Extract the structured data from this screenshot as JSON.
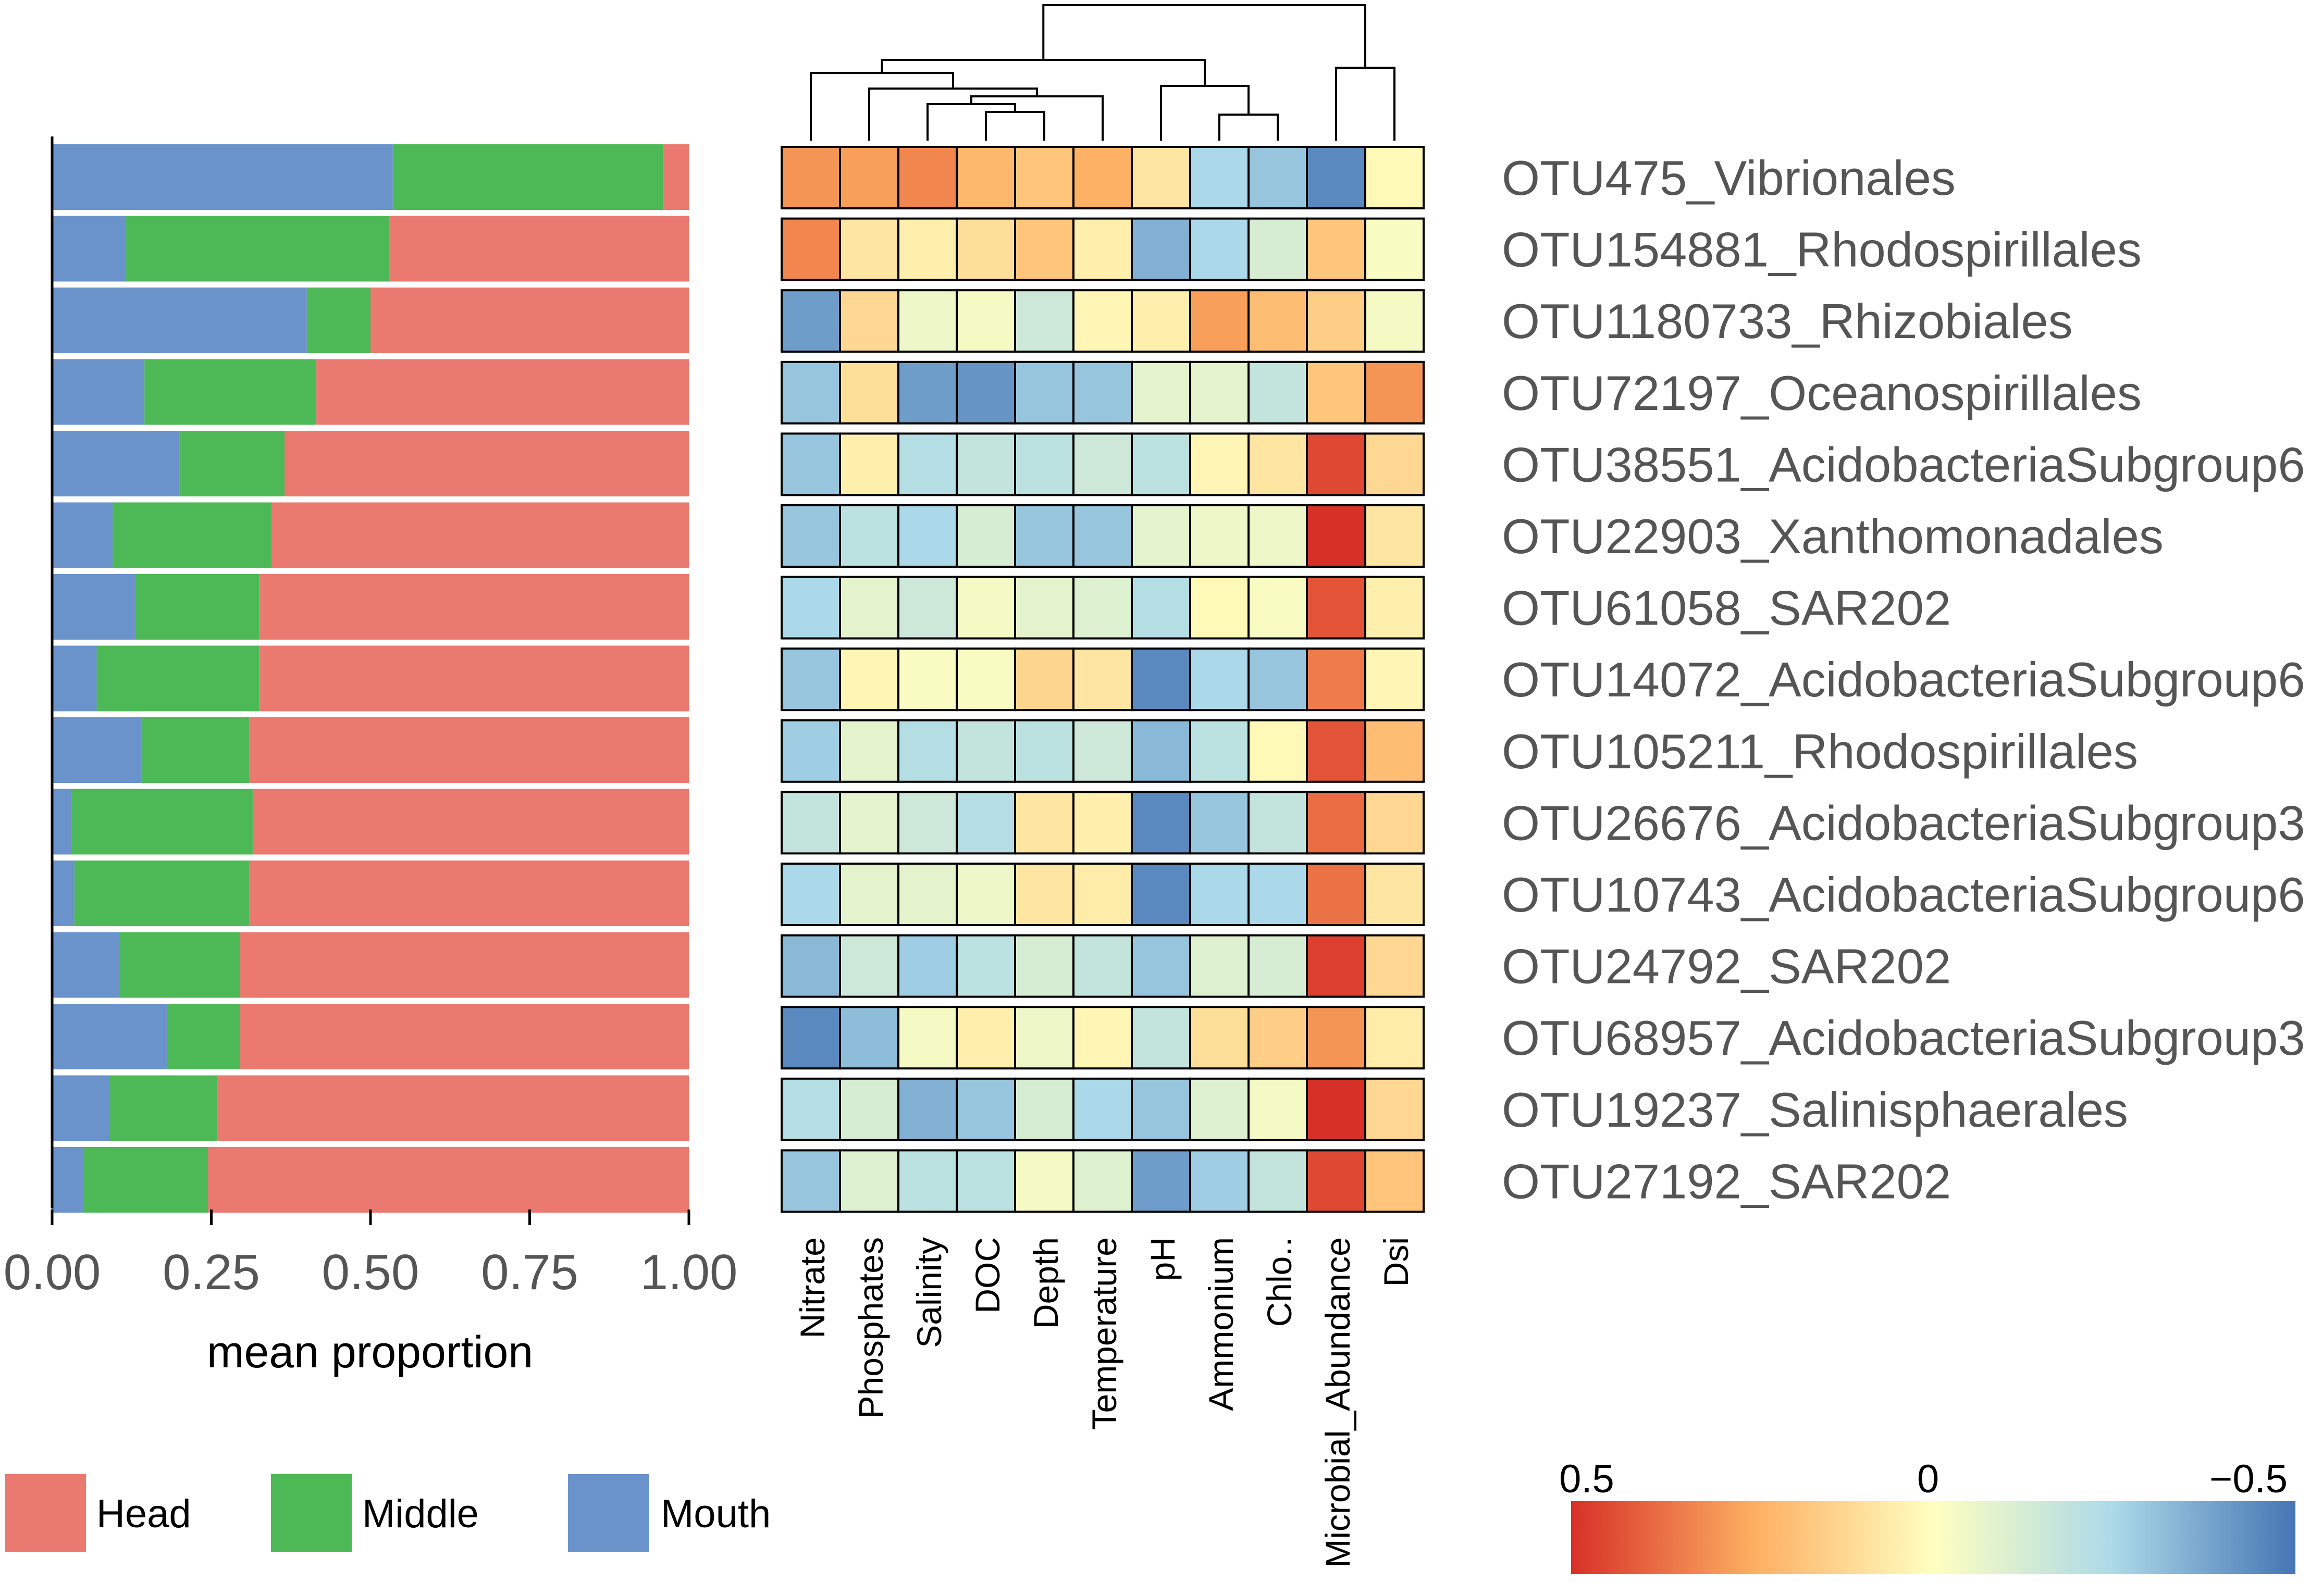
{
  "chart_data": [
    {
      "type": "bar",
      "orientation": "horizontal",
      "stacked": true,
      "xlabel": "mean proportion",
      "xlim": [
        0,
        1
      ],
      "xticks": [
        "0.00",
        "0.25",
        "0.50",
        "0.75",
        "1.00"
      ],
      "categories": [
        "OTU475_Vibrionales",
        "OTU154881_Rhodospirillales",
        "OTU1180733_Rhizobiales",
        "OTU72197_Oceanospirillales",
        "OTU38551_AcidobacteriaSubgroup6",
        "OTU22903_Xanthomonadales",
        "OTU61058_SAR202",
        "OTU14072_AcidobacteriaSubgroup6",
        "OTU105211_Rhodospirillales",
        "OTU26676_AcidobacteriaSubgroup3",
        "OTU10743_AcidobacteriaSubgroup6",
        "OTU24792_SAR202",
        "OTU68957_AcidobacteriaSubgroup3",
        "OTU19237_Salinisphaerales",
        "OTU27192_SAR202"
      ],
      "series": [
        {
          "name": "Mouth",
          "color": "#6a93cc",
          "values": [
            0.535,
            0.115,
            0.4,
            0.145,
            0.2,
            0.095,
            0.13,
            0.07,
            0.14,
            0.03,
            0.035,
            0.105,
            0.18,
            0.09,
            0.05
          ]
        },
        {
          "name": "Middle",
          "color": "#4db956",
          "values": [
            0.425,
            0.415,
            0.1,
            0.27,
            0.165,
            0.25,
            0.195,
            0.255,
            0.17,
            0.285,
            0.275,
            0.19,
            0.115,
            0.17,
            0.195
          ]
        },
        {
          "name": "Head",
          "color": "#ea7970",
          "values": [
            0.04,
            0.47,
            0.5,
            0.585,
            0.635,
            0.655,
            0.675,
            0.675,
            0.69,
            0.685,
            0.69,
            0.705,
            0.705,
            0.74,
            0.755
          ]
        }
      ],
      "legend": {
        "placement": "bottom-left",
        "items": [
          "Head",
          "Middle",
          "Mouth"
        ]
      }
    },
    {
      "type": "heatmap",
      "rows": [
        "OTU475_Vibrionales",
        "OTU154881_Rhodospirillales",
        "OTU1180733_Rhizobiales",
        "OTU72197_Oceanospirillales",
        "OTU38551_AcidobacteriaSubgroup6",
        "OTU22903_Xanthomonadales",
        "OTU61058_SAR202",
        "OTU14072_AcidobacteriaSubgroup6",
        "OTU105211_Rhodospirillales",
        "OTU26676_AcidobacteriaSubgroup3",
        "OTU10743_AcidobacteriaSubgroup6",
        "OTU24792_SAR202",
        "OTU68957_AcidobacteriaSubgroup3",
        "OTU19237_Salinisphaerales",
        "OTU27192_SAR202"
      ],
      "columns": [
        "Nitrate",
        "Phosphates",
        "Salinity",
        "DOC",
        "Depth",
        "Temperature",
        "pH",
        "Ammonium",
        "Chlo..",
        "Microbial_Abundance",
        "Dsi"
      ],
      "values": [
        [
          0.3,
          0.28,
          0.33,
          0.22,
          0.18,
          0.24,
          0.08,
          -0.25,
          -0.3,
          -0.45,
          0.02
        ],
        [
          0.33,
          0.08,
          0.05,
          0.1,
          0.18,
          0.05,
          -0.35,
          -0.25,
          -0.12,
          0.18,
          -0.02
        ],
        [
          -0.4,
          0.12,
          -0.05,
          -0.03,
          -0.15,
          0.03,
          0.05,
          0.28,
          0.2,
          0.15,
          -0.03
        ],
        [
          -0.3,
          0.1,
          -0.4,
          -0.42,
          -0.3,
          -0.3,
          -0.08,
          -0.08,
          -0.18,
          0.18,
          0.3
        ],
        [
          -0.3,
          0.05,
          -0.22,
          -0.18,
          -0.2,
          -0.15,
          -0.2,
          0.03,
          0.08,
          0.45,
          0.12
        ],
        [
          -0.3,
          -0.2,
          -0.25,
          -0.12,
          -0.3,
          -0.3,
          -0.08,
          -0.05,
          -0.05,
          0.5,
          0.08
        ],
        [
          -0.25,
          -0.08,
          -0.15,
          -0.03,
          -0.08,
          -0.1,
          -0.22,
          0.02,
          -0.02,
          0.43,
          0.05
        ],
        [
          -0.3,
          0.03,
          -0.02,
          -0.02,
          0.13,
          0.08,
          -0.45,
          -0.25,
          -0.3,
          0.35,
          0.03
        ],
        [
          -0.28,
          -0.08,
          -0.22,
          -0.18,
          -0.2,
          -0.15,
          -0.33,
          -0.2,
          0.02,
          0.43,
          0.2
        ],
        [
          -0.18,
          -0.08,
          -0.15,
          -0.22,
          0.08,
          0.05,
          -0.45,
          -0.3,
          -0.18,
          0.38,
          0.12
        ],
        [
          -0.25,
          -0.08,
          -0.08,
          -0.05,
          0.08,
          0.06,
          -0.45,
          -0.25,
          -0.25,
          0.37,
          0.08
        ],
        [
          -0.33,
          -0.15,
          -0.28,
          -0.2,
          -0.12,
          -0.18,
          -0.3,
          -0.1,
          -0.12,
          0.47,
          0.12
        ],
        [
          -0.45,
          -0.32,
          -0.03,
          0.05,
          -0.05,
          0.03,
          -0.18,
          0.1,
          0.15,
          0.3,
          0.06
        ],
        [
          -0.22,
          -0.12,
          -0.35,
          -0.3,
          -0.12,
          -0.25,
          -0.3,
          -0.1,
          -0.03,
          0.5,
          0.12
        ],
        [
          -0.3,
          -0.1,
          -0.2,
          -0.2,
          -0.03,
          -0.1,
          -0.4,
          -0.28,
          -0.18,
          0.45,
          0.18
        ]
      ],
      "dendrogram": "hierarchical clustering of columns shown above heatmap",
      "colorbar": {
        "min": -0.5,
        "max": 0.5,
        "tick_labels": [
          "0.5",
          "0",
          "−0.5"
        ],
        "colors": [
          "#d73027",
          "#fdae61",
          "#ffffbf",
          "#abd9e9",
          "#4575b4"
        ]
      }
    }
  ]
}
